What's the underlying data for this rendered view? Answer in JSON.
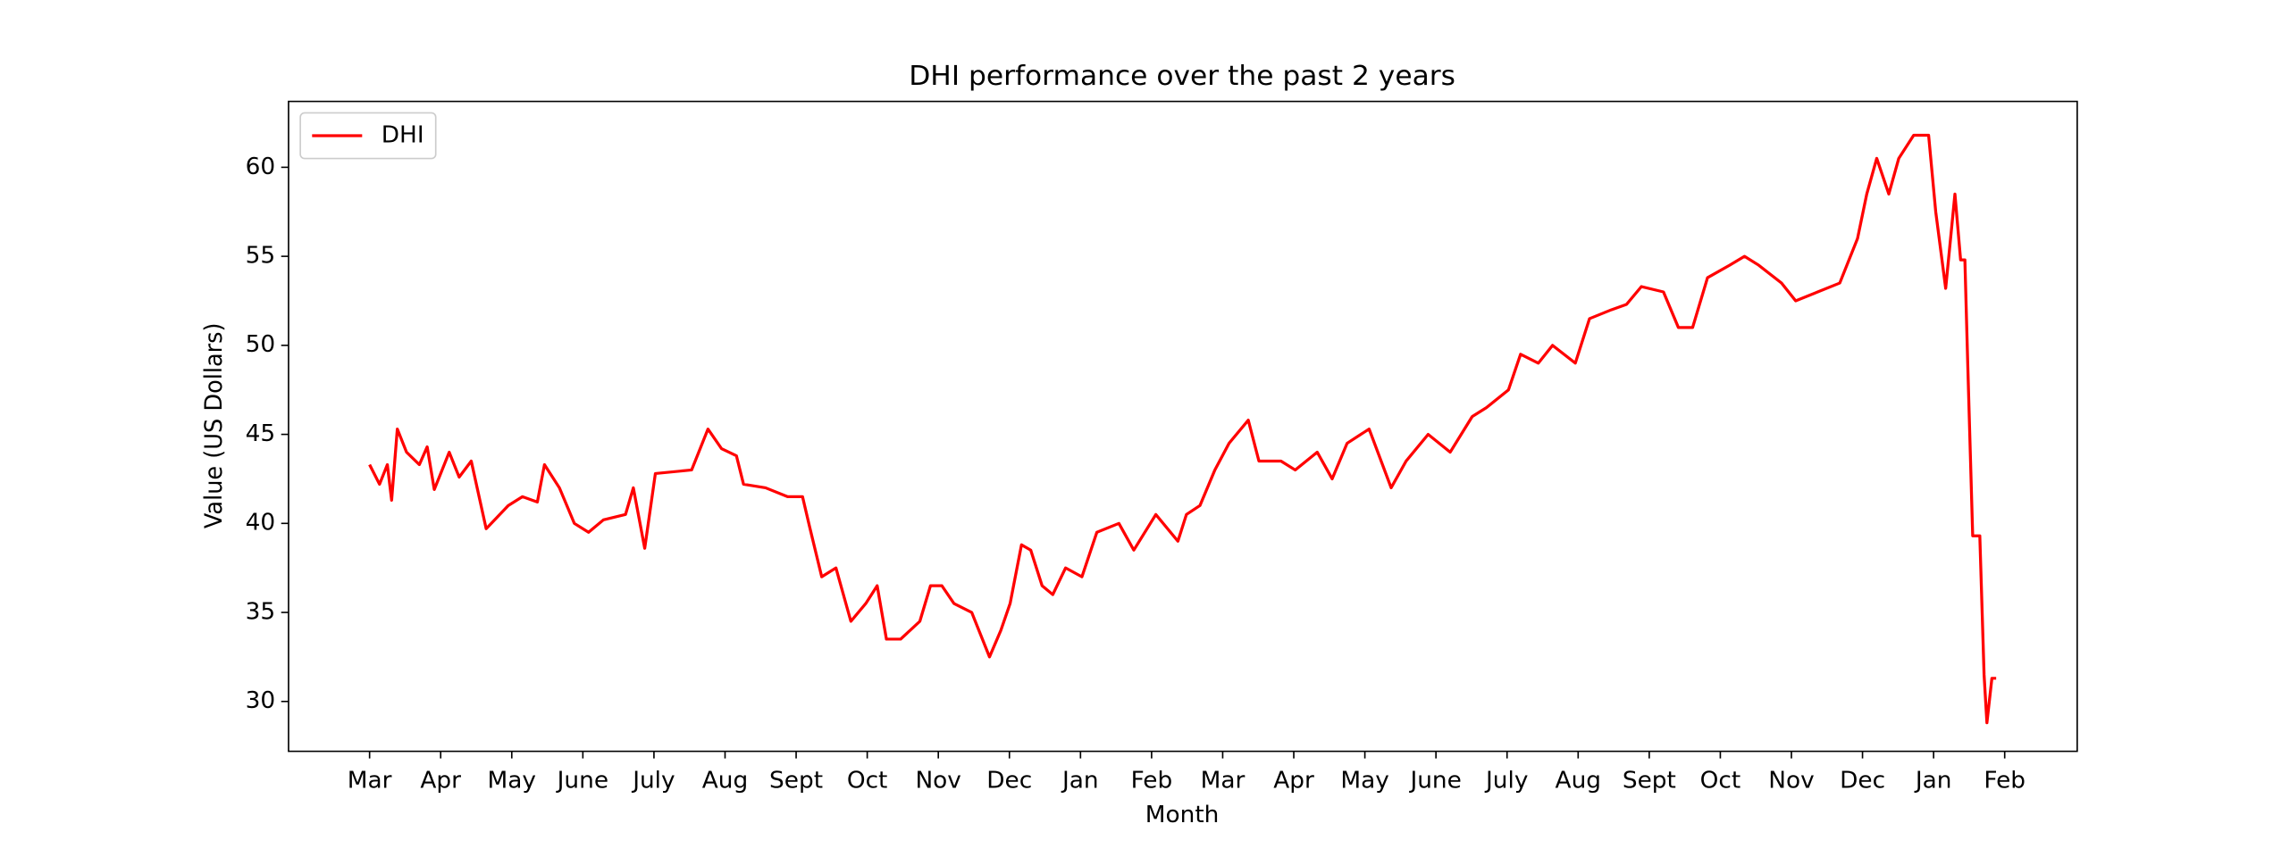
{
  "chart_data": {
    "type": "line",
    "title": "DHI performance over the past 2 years",
    "x_label": "Month",
    "y_label": "Value (US Dollars)",
    "legend": "upper left",
    "xlim": [
      -1.14,
      24.02
    ],
    "ylim": [
      27.2,
      63.7
    ],
    "yticks": [
      30,
      35,
      40,
      45,
      50,
      55,
      60
    ],
    "xticks": [
      {
        "value": 0,
        "label": "Mar"
      },
      {
        "value": 1,
        "label": "Apr"
      },
      {
        "value": 2,
        "label": "May"
      },
      {
        "value": 3,
        "label": "June"
      },
      {
        "value": 4,
        "label": "July"
      },
      {
        "value": 5,
        "label": "Aug"
      },
      {
        "value": 6,
        "label": "Sept"
      },
      {
        "value": 7,
        "label": "Oct"
      },
      {
        "value": 8,
        "label": "Nov"
      },
      {
        "value": 9,
        "label": "Dec"
      },
      {
        "value": 10,
        "label": "Jan"
      },
      {
        "value": 11,
        "label": "Feb"
      },
      {
        "value": 12,
        "label": "Mar"
      },
      {
        "value": 13,
        "label": "Apr"
      },
      {
        "value": 14,
        "label": "May"
      },
      {
        "value": 15,
        "label": "June"
      },
      {
        "value": 16,
        "label": "July"
      },
      {
        "value": 17,
        "label": "Aug"
      },
      {
        "value": 18,
        "label": "Sept"
      },
      {
        "value": 19,
        "label": "Oct"
      },
      {
        "value": 20,
        "label": "Nov"
      },
      {
        "value": 21,
        "label": "Dec"
      },
      {
        "value": 22,
        "label": "Jan"
      },
      {
        "value": 23,
        "label": "Feb"
      }
    ],
    "x": [
      0,
      0.14,
      0.25,
      0.31,
      0.39,
      0.52,
      0.7,
      0.81,
      0.91,
      1.12,
      1.26,
      1.43,
      1.64,
      1.95,
      2.15,
      2.36,
      2.46,
      2.67,
      2.88,
      3.08,
      3.29,
      3.6,
      3.71,
      3.87,
      4.02,
      4.53,
      4.76,
      4.95,
      5.16,
      5.26,
      5.57,
      5.88,
      6.09,
      6.19,
      6.36,
      6.56,
      6.77,
      6.98,
      7.14,
      7.27,
      7.47,
      7.74,
      7.89,
      8.05,
      8.22,
      8.47,
      8.72,
      8.88,
      9.01,
      9.17,
      9.3,
      9.46,
      9.61,
      9.79,
      10.02,
      10.23,
      10.54,
      10.75,
      11.06,
      11.37,
      11.49,
      11.68,
      11.89,
      12.09,
      12.36,
      12.51,
      12.82,
      13.02,
      13.33,
      13.54,
      13.75,
      14.06,
      14.37,
      14.58,
      14.89,
      15.2,
      15.51,
      15.71,
      16.02,
      16.19,
      16.44,
      16.64,
      16.96,
      17.16,
      17.47,
      17.68,
      17.89,
      18.2,
      18.41,
      18.61,
      18.82,
      19.13,
      19.34,
      19.54,
      19.86,
      20.06,
      20.37,
      20.68,
      20.93,
      21.06,
      21.2,
      21.37,
      21.51,
      21.72,
      21.93,
      22.03,
      22.17,
      22.3,
      22.38,
      22.44,
      22.48,
      22.55,
      22.65,
      22.71,
      22.75,
      22.82,
      22.88
    ],
    "series": [
      {
        "name": "DHI",
        "color": "#ff0000",
        "values": [
          43.3,
          42.2,
          43.3,
          41.3,
          45.3,
          44.0,
          43.3,
          44.3,
          41.9,
          44.0,
          42.6,
          43.5,
          39.7,
          41.0,
          41.5,
          41.2,
          43.3,
          42.0,
          40.0,
          39.5,
          40.2,
          40.5,
          42.0,
          38.6,
          42.8,
          43.0,
          45.3,
          44.2,
          43.8,
          42.2,
          42.0,
          41.5,
          41.5,
          39.8,
          37.0,
          37.5,
          34.5,
          35.5,
          36.5,
          33.5,
          33.5,
          34.5,
          36.5,
          36.5,
          35.5,
          35.0,
          32.5,
          34.0,
          35.5,
          38.8,
          38.5,
          36.5,
          36.0,
          37.5,
          37.0,
          39.5,
          40.0,
          38.5,
          40.5,
          39.0,
          40.5,
          41.0,
          43.0,
          44.5,
          45.8,
          43.5,
          43.5,
          43.0,
          44.0,
          42.5,
          44.5,
          45.3,
          42.0,
          43.5,
          45.0,
          44.0,
          46.0,
          46.5,
          47.5,
          49.5,
          49.0,
          50.0,
          49.0,
          51.5,
          52.0,
          52.3,
          53.3,
          53.0,
          51.0,
          51.0,
          53.8,
          54.5,
          55.0,
          54.5,
          53.5,
          52.5,
          53.0,
          53.5,
          56.0,
          58.5,
          60.5,
          58.5,
          60.5,
          61.8,
          61.8,
          57.5,
          53.2,
          58.5,
          54.8,
          54.8,
          49.0,
          39.3,
          39.3,
          31.5,
          28.8,
          31.3,
          31.3
        ]
      }
    ]
  }
}
